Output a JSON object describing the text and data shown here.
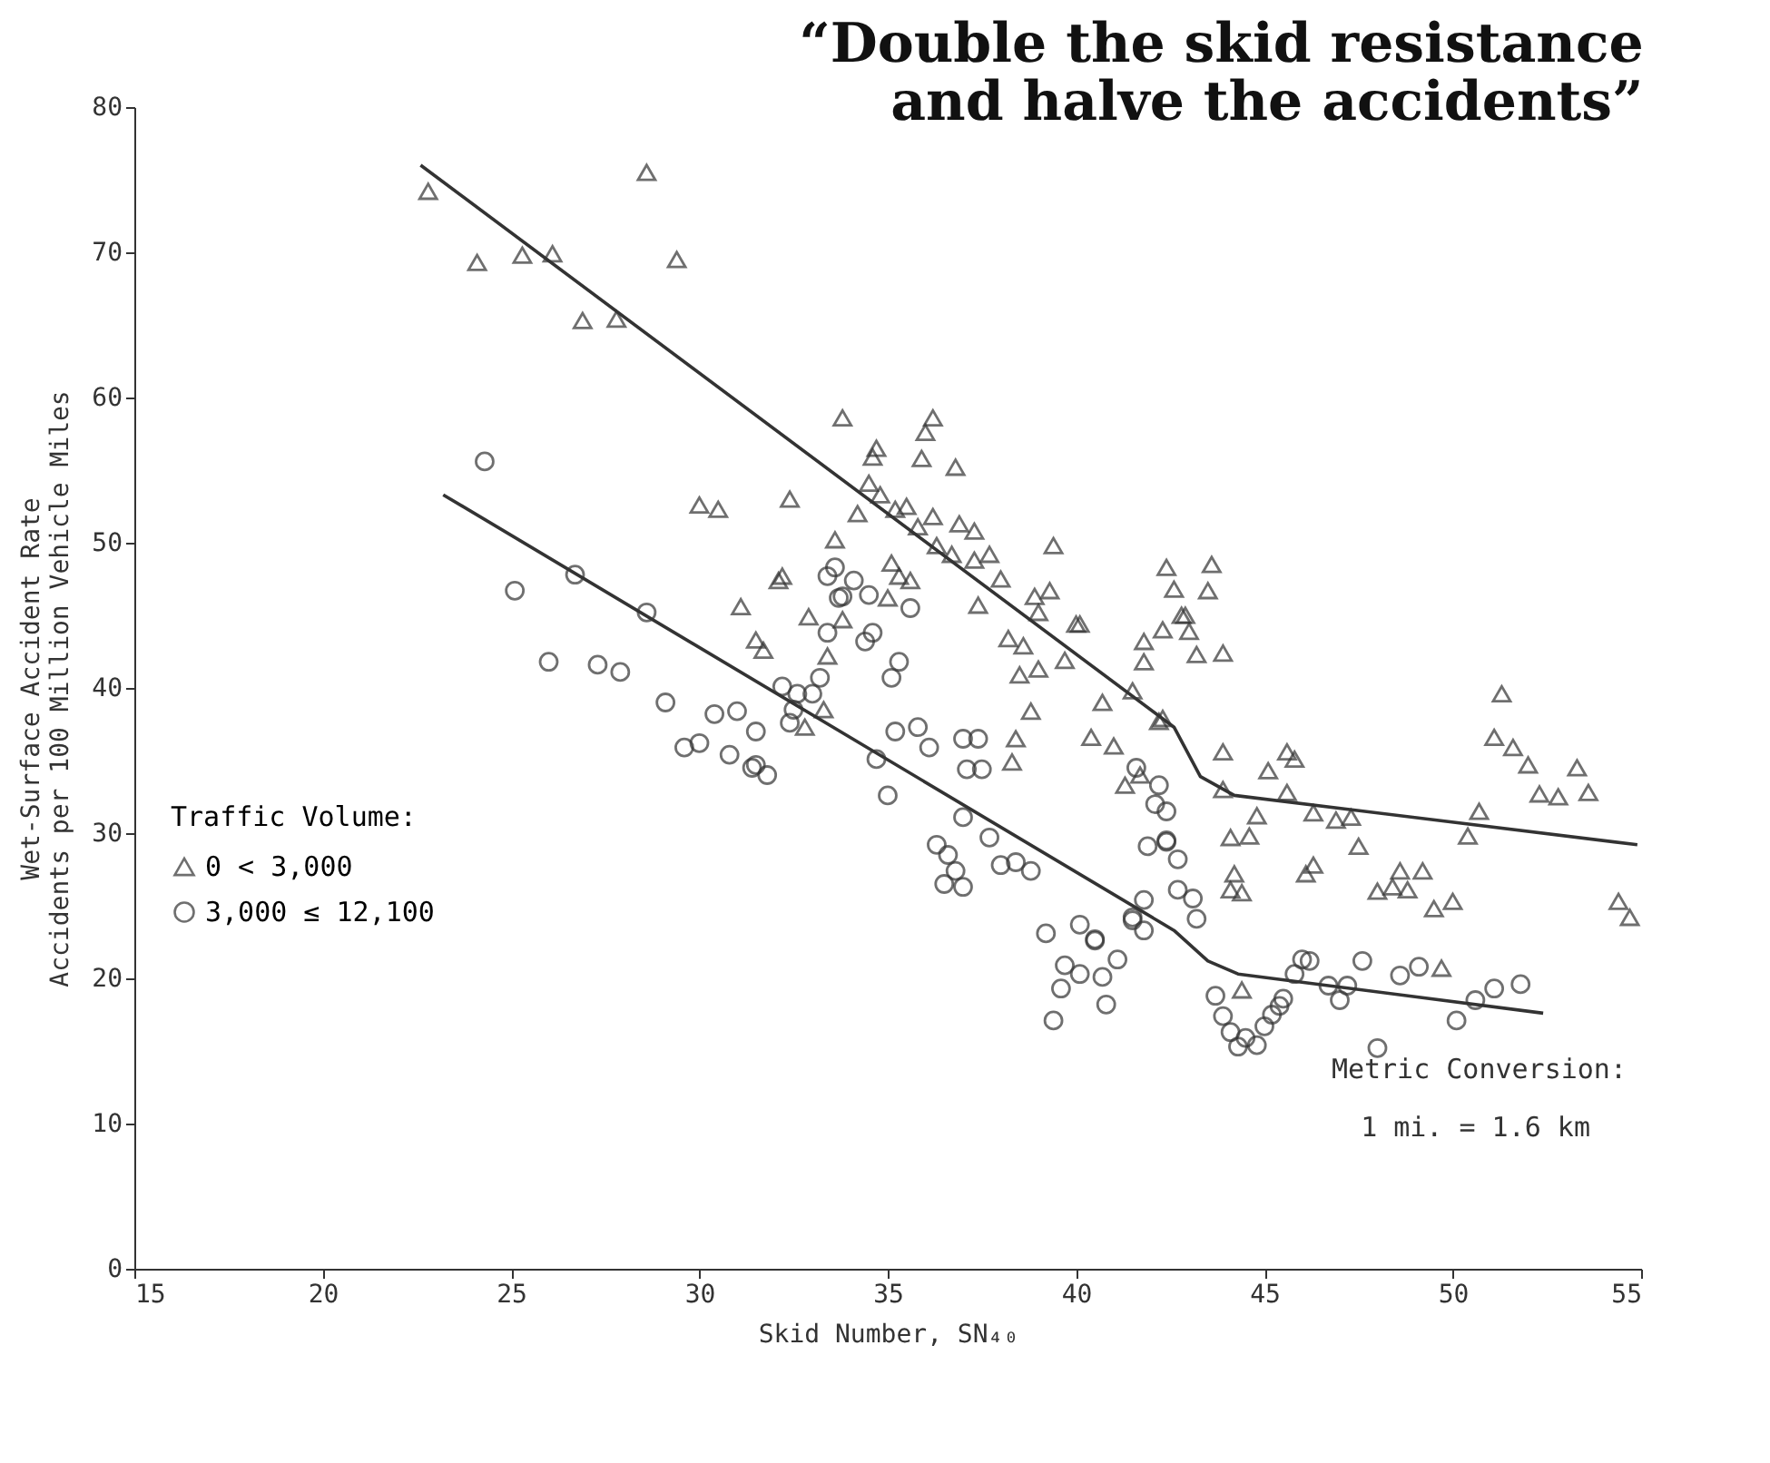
{
  "chart_data": {
    "type": "scatter",
    "title": "“Double the skid resistance\nand halve the accidents”",
    "xlabel": "Skid Number, SN₄₀",
    "ylabel": "Wet-Surface Accident Rate\nAccidents per 100 Million Vehicle Miles",
    "legend_title": "Traffic Volume:",
    "legend": "bottom left",
    "xlim": [
      15,
      55
    ],
    "ylim": [
      0,
      80
    ],
    "xticks": [
      15,
      20,
      25,
      30,
      35,
      40,
      45,
      50,
      55
    ],
    "yticks": [
      0,
      10,
      20,
      30,
      40,
      50,
      60,
      70,
      80
    ],
    "grid": false,
    "annotations": [
      "Metric Conversion:",
      "1 mi. = 1.6 km"
    ],
    "series": [
      {
        "name": "0 < 3,000",
        "type": "scatter",
        "marker": "triangle",
        "color": "#333333",
        "x": [
          22.8,
          24.1,
          25.3,
          26.1,
          26.9,
          27.8,
          28.6,
          29.4,
          33.8,
          30.0,
          30.5,
          32.4,
          33.6,
          32.1,
          31.1,
          31.5,
          31.7,
          32.9,
          33.8,
          33.4,
          33.3,
          32.8,
          36.2,
          36.0,
          34.7,
          34.6,
          35.9,
          36.8,
          34.5,
          34.8,
          34.2,
          35.2,
          35.5,
          36.2,
          36.9,
          37.3,
          35.8,
          36.3,
          36.7,
          37.3,
          37.7,
          38.0,
          39.4,
          35.1,
          35.3,
          35.6,
          35.0,
          32.2,
          37.4,
          38.9,
          39.3,
          39.0,
          40.0,
          38.2,
          38.6,
          39.7,
          39.0,
          38.5,
          38.8,
          38.4,
          40.4,
          41.0,
          38.3,
          41.5,
          40.7,
          42.3,
          42.4,
          42.6,
          41.8,
          42.3,
          42.8,
          41.8,
          41.3,
          41.7,
          43.6,
          43.5,
          40.1,
          42.9,
          43.0,
          43.2,
          43.9,
          42.2,
          43.9,
          45.6,
          45.8,
          45.1,
          45.6,
          43.9,
          44.8,
          46.3,
          46.9,
          47.3,
          47.5,
          44.1,
          44.6,
          50.7,
          50.4,
          51.3,
          51.1,
          51.6,
          52.0,
          53.3,
          52.3,
          52.8,
          53.6,
          46.3,
          46.1,
          44.2,
          44.1,
          44.4,
          48.6,
          49.2,
          48.0,
          48.4,
          48.8,
          49.5,
          50.0,
          54.4,
          54.7,
          44.4,
          49.7
        ],
        "values": [
          74.2,
          69.3,
          69.8,
          69.9,
          65.3,
          65.4,
          75.5,
          69.5,
          58.6,
          52.6,
          52.3,
          53.0,
          50.2,
          47.4,
          45.6,
          43.3,
          42.6,
          44.9,
          44.7,
          42.2,
          38.5,
          37.3,
          58.6,
          57.6,
          56.5,
          55.9,
          55.8,
          55.2,
          54.1,
          53.3,
          52.0,
          52.3,
          52.5,
          51.8,
          51.3,
          50.8,
          51.1,
          49.8,
          49.2,
          48.8,
          49.2,
          47.5,
          49.8,
          48.6,
          47.7,
          47.4,
          46.2,
          47.7,
          45.7,
          46.3,
          46.7,
          45.2,
          44.4,
          43.4,
          42.9,
          41.9,
          41.3,
          40.9,
          38.4,
          36.5,
          36.6,
          36.0,
          34.9,
          39.8,
          39.0,
          37.9,
          48.3,
          46.8,
          43.2,
          44.0,
          45.0,
          41.8,
          33.3,
          34.0,
          48.5,
          46.7,
          44.4,
          45.0,
          43.9,
          42.3,
          42.4,
          37.7,
          35.6,
          35.6,
          35.1,
          34.3,
          32.8,
          33.0,
          31.2,
          31.4,
          30.9,
          31.1,
          29.1,
          29.7,
          29.8,
          31.5,
          29.8,
          39.6,
          36.6,
          35.9,
          34.7,
          34.5,
          32.7,
          32.5,
          32.8,
          27.8,
          27.2,
          27.2,
          26.1,
          25.9,
          27.4,
          27.4,
          26.0,
          26.3,
          26.1,
          24.8,
          25.3,
          25.3,
          24.2,
          19.2,
          20.7
        ]
      },
      {
        "name": "3,000 ≤ 12,100",
        "type": "scatter",
        "marker": "circle",
        "color": "#333333",
        "x": [
          24.3,
          25.1,
          26.7,
          28.6,
          26.0,
          27.3,
          27.9,
          29.1,
          30.4,
          31.0,
          31.5,
          29.6,
          30.0,
          30.8,
          31.4,
          31.8,
          32.2,
          32.6,
          33.0,
          32.5,
          32.4,
          33.2,
          33.4,
          33.6,
          33.7,
          33.4,
          34.1,
          33.8,
          34.5,
          35.6,
          34.6,
          34.4,
          35.3,
          35.1,
          31.5,
          35.2,
          35.8,
          36.1,
          37.0,
          37.4,
          37.1,
          37.5,
          34.7,
          35.0,
          37.0,
          36.3,
          36.6,
          36.8,
          36.5,
          37.0,
          37.7,
          38.0,
          38.4,
          38.8,
          39.2,
          40.1,
          40.5,
          41.1,
          39.7,
          40.1,
          39.6,
          40.7,
          40.8,
          39.4,
          41.5,
          41.8,
          41.8,
          41.9,
          42.4,
          42.7,
          42.7,
          41.6,
          42.2,
          42.4,
          42.1,
          42.4,
          43.1,
          43.2,
          41.5,
          40.5,
          43.7,
          43.9,
          44.1,
          44.3,
          44.5,
          44.8,
          45.0,
          45.2,
          45.4,
          45.5,
          45.8,
          46.0,
          46.2,
          46.7,
          47.2,
          47.0,
          47.6,
          48.6,
          49.1,
          48.0,
          50.1,
          50.6,
          51.1,
          51.8
        ],
        "values": [
          55.6,
          46.7,
          47.8,
          45.2,
          41.8,
          41.6,
          41.1,
          39.0,
          38.2,
          38.4,
          37.0,
          35.9,
          36.2,
          35.4,
          34.5,
          34.0,
          40.1,
          39.6,
          39.6,
          38.5,
          37.6,
          40.7,
          43.8,
          48.3,
          46.2,
          47.7,
          47.4,
          46.3,
          46.4,
          45.5,
          43.8,
          43.2,
          41.8,
          40.7,
          34.7,
          37.0,
          37.3,
          35.9,
          36.5,
          36.5,
          34.4,
          34.4,
          35.1,
          32.6,
          31.1,
          29.2,
          28.5,
          27.4,
          26.5,
          26.3,
          29.7,
          27.8,
          28.0,
          27.4,
          23.1,
          23.7,
          22.6,
          21.3,
          20.9,
          20.3,
          19.3,
          20.1,
          18.2,
          17.1,
          24.0,
          23.3,
          25.4,
          29.1,
          29.4,
          28.2,
          26.1,
          34.5,
          33.3,
          31.5,
          32.0,
          29.5,
          25.5,
          24.1,
          24.2,
          22.7,
          18.8,
          17.4,
          16.3,
          15.3,
          15.9,
          15.4,
          16.7,
          17.5,
          18.1,
          18.6,
          20.3,
          21.3,
          21.2,
          19.5,
          19.5,
          18.5,
          21.2,
          20.2,
          20.8,
          15.2,
          17.1,
          18.5,
          19.3,
          19.6
        ]
      },
      {
        "type": "line",
        "color": "#333333",
        "x": [
          22.6,
          42.6,
          43.3,
          44.2,
          54.9
        ],
        "values": [
          76.0,
          37.3,
          33.9,
          32.6,
          29.2
        ]
      },
      {
        "type": "line",
        "color": "#333333",
        "x": [
          23.2,
          42.6,
          43.5,
          44.3,
          52.4
        ],
        "values": [
          53.3,
          23.3,
          21.2,
          20.3,
          17.6
        ]
      }
    ]
  }
}
